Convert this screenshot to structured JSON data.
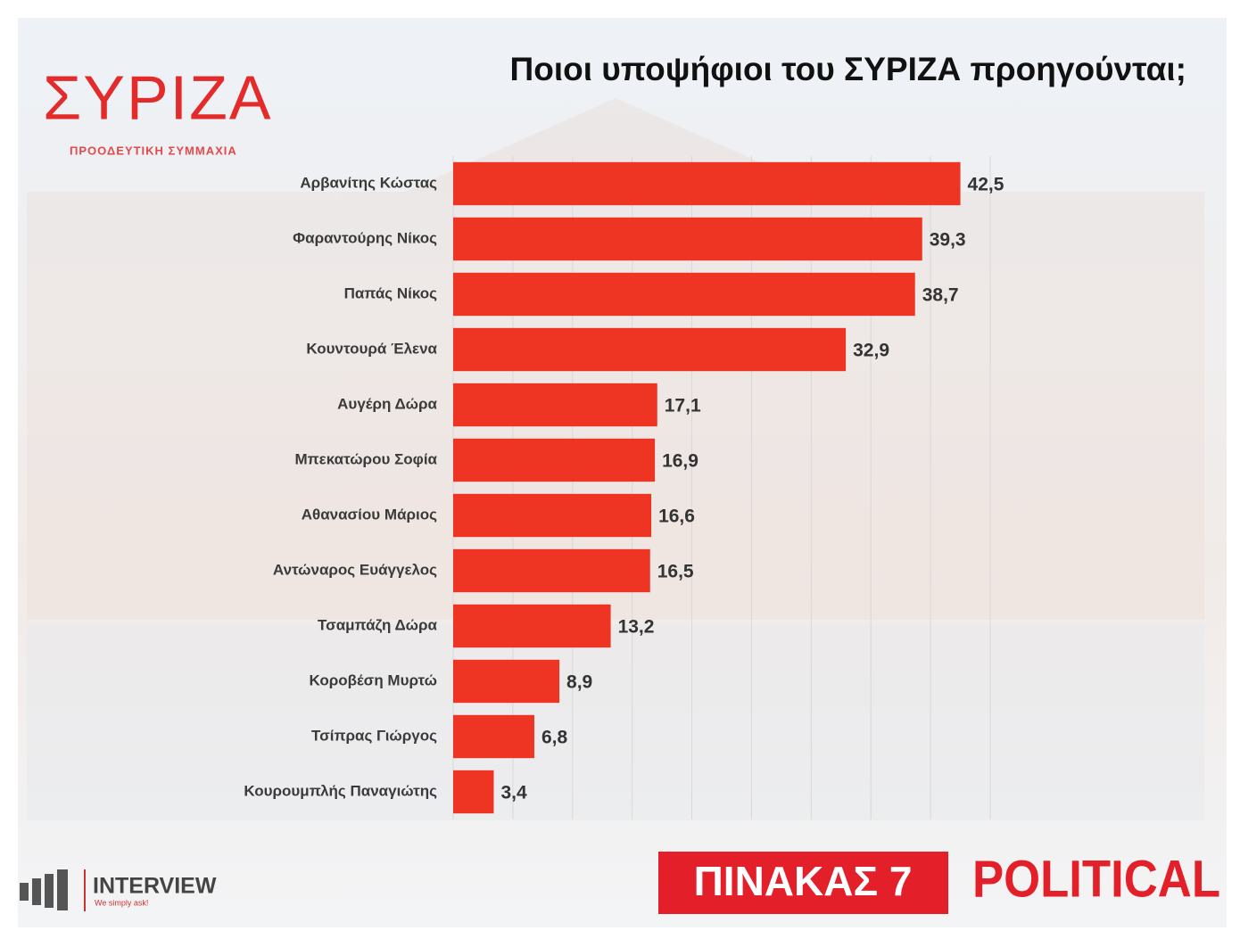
{
  "chart_data": {
    "type": "barh",
    "title": "Ποιοι υποψήφιοι του ΣΥΡΙΖΑ προηγούνται;",
    "categories": [
      "Αρβανίτης Κώστας",
      "Φαραντούρης Νίκος",
      "Παπάς Νίκος",
      "Κουντουρά Έλενα",
      "Αυγέρη Δώρα",
      "Μπεκατώρου Σοφία",
      "Αθανασίου Μάριος",
      "Αντώναρος Ευάγγελος",
      "Τσαμπάζη Δώρα",
      "Κοροβέση Μυρτώ",
      "Τσίπρας Γιώργος",
      "Κουρουμπλής Παναγιώτης"
    ],
    "values": [
      42.5,
      39.3,
      38.7,
      32.9,
      17.1,
      16.9,
      16.6,
      16.5,
      13.2,
      8.9,
      6.8,
      3.4
    ],
    "value_labels": [
      "42,5",
      "39,3",
      "38,7",
      "32,9",
      "17,1",
      "16,9",
      "16,6",
      "16,5",
      "13,2",
      "8,9",
      "6,8",
      "3,4"
    ],
    "color": "#ee3524",
    "xlim": [
      0,
      45
    ],
    "xticks": [
      0,
      5,
      10,
      15,
      20,
      25,
      30,
      35,
      40,
      45
    ],
    "grid": true
  },
  "logo": {
    "name": "ΣΥΡΙΖΑ",
    "subtitle": "ΠΡΟΟΔΕΥΤΙΚΗ ΣΥΜΜΑΧΙΑ"
  },
  "footer": {
    "company": "INTERVIEW",
    "slogan": "We simply ask!",
    "table": "ΠΙΝΑΚΑΣ 7",
    "outlet": "POLITICAL"
  }
}
